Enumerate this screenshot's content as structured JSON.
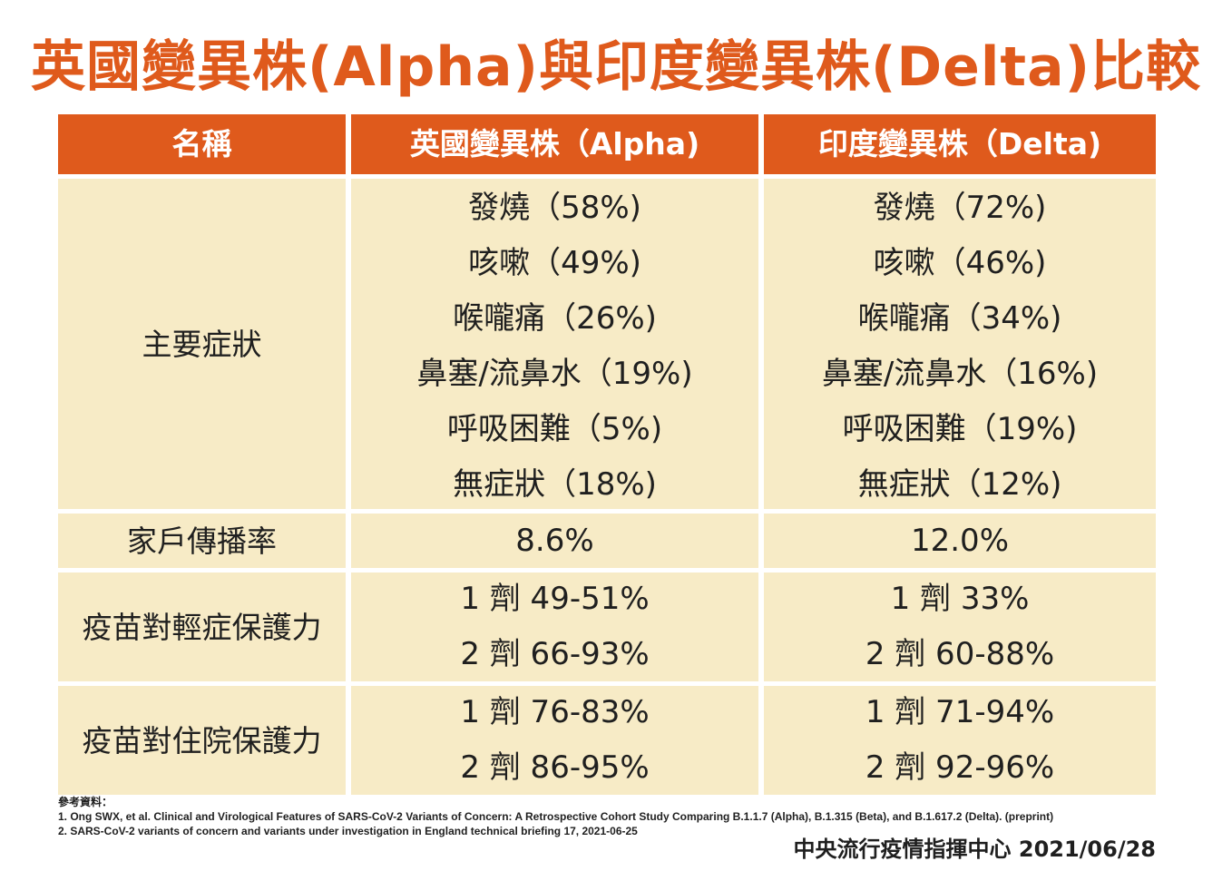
{
  "title": "英國變異株(Alpha)與印度變異株(Delta)比較",
  "header": {
    "col_name": "名稱",
    "col_alpha": "英國變異株（Alpha)",
    "col_delta": "印度變異株（Delta)"
  },
  "rows": {
    "symptoms": {
      "label": "主要症狀",
      "alpha": [
        "發燒（58%)",
        "咳嗽（49%)",
        "喉嚨痛（26%)",
        "鼻塞/流鼻水（19%)",
        "呼吸困難（5%)",
        "無症狀（18%)"
      ],
      "delta": [
        "發燒（72%)",
        "咳嗽（46%)",
        "喉嚨痛（34%)",
        "鼻塞/流鼻水（16%)",
        "呼吸困難（19%)",
        "無症狀（12%)"
      ]
    },
    "household": {
      "label": "家戶傳播率",
      "alpha": "8.6%",
      "delta": "12.0%"
    },
    "mild_protection": {
      "label": "疫苗對輕症保護力",
      "alpha": [
        "1 劑 49-51%",
        "2 劑 66-93%"
      ],
      "delta": [
        "1 劑 33%",
        "2 劑 60-88%"
      ]
    },
    "hospital_protection": {
      "label": "疫苗對住院保護力",
      "alpha": [
        "1 劑 76-83%",
        "2 劑 86-95%"
      ],
      "delta": [
        "1 劑 71-94%",
        "2 劑 92-96%"
      ]
    }
  },
  "references": {
    "heading": "參考資料：",
    "items": [
      "1. Ong SWX, et al. Clinical and Virological Features of SARS-CoV-2 Variants of Concern: A Retrospective Cohort Study Comparing B.1.1.7 (Alpha), B.1.315 (Beta), and B.1.617.2 (Delta). (preprint)",
      "2. SARS-CoV-2 variants of concern and variants under investigation in England technical briefing 17, 2021-06-25"
    ]
  },
  "footer": "中央流行疫情指揮中心 2021/06/28",
  "colors": {
    "accent": "#df5a1c",
    "cell_background": "#f7ebc6",
    "text": "#1f1f1f"
  }
}
